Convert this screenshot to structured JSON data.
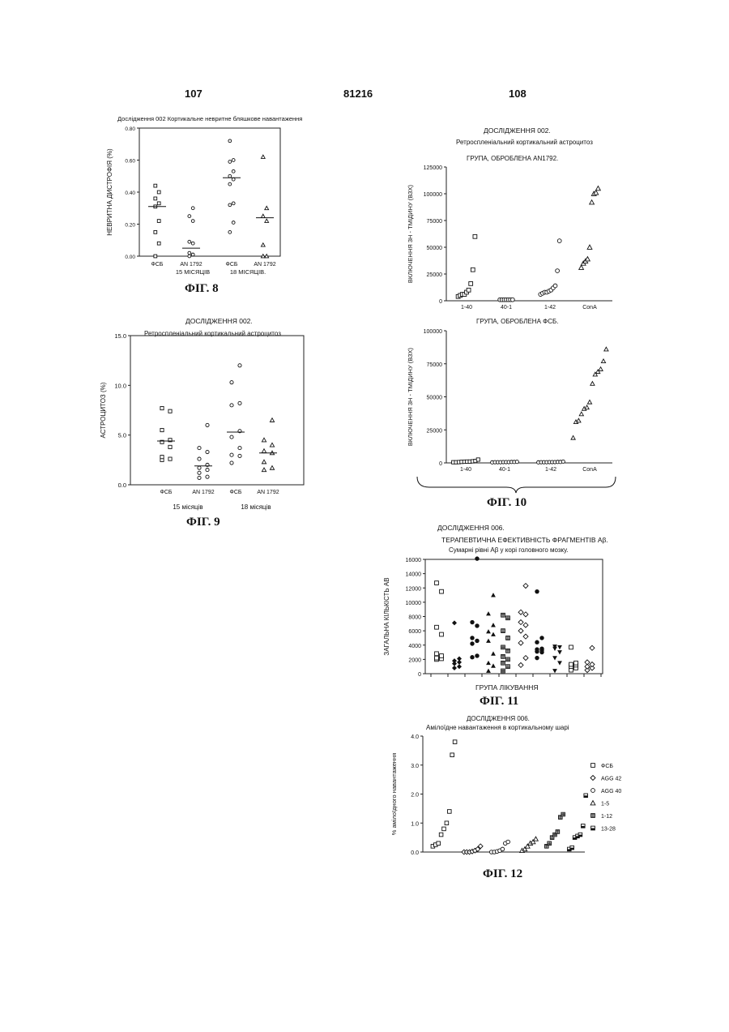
{
  "page": {
    "left_number": "107",
    "center_number": "81216",
    "right_number": "108"
  },
  "captions": {
    "fig8": "ФІГ. 8",
    "fig9": "ФІГ. 9",
    "fig10": "ФІГ. 10",
    "fig11": "ФІГ. 11",
    "fig12": "ФІГ. 12"
  },
  "chart_data": [
    {
      "id": "fig8",
      "type": "scatter",
      "title": "Дослідження 002   Кортикальне невритне бляшкове навантаження",
      "ylabel": "НЕВРИТНА ДИСТРОФІЯ (%)",
      "ylim": [
        0,
        0.8
      ],
      "yticks": [
        "0.00",
        "0.20",
        "0.40",
        "0.60",
        "0.80"
      ],
      "groups": [
        {
          "label": "ФСБ",
          "symbol": "square",
          "mean": 0.31,
          "values": [
            0.0,
            0.08,
            0.15,
            0.22,
            0.31,
            0.33,
            0.36,
            0.4,
            0.44
          ]
        },
        {
          "label": "AN 1792",
          "symbol": "circle",
          "mean": 0.05,
          "values": [
            0.0,
            0.01,
            0.02,
            0.08,
            0.09,
            0.22,
            0.25,
            0.3
          ]
        },
        {
          "label": "ФСБ",
          "symbol": "circle",
          "mean": 0.49,
          "values": [
            0.15,
            0.21,
            0.32,
            0.33,
            0.45,
            0.48,
            0.5,
            0.53,
            0.59,
            0.6,
            0.72
          ]
        },
        {
          "label": "AN 1792",
          "symbol": "triangle",
          "mean": 0.24,
          "values": [
            0.0,
            0.0,
            0.07,
            0.22,
            0.25,
            0.3,
            0.62
          ]
        }
      ],
      "age_labels": [
        "15 МІСЯЦІВ",
        "18 МІСЯЦІВ."
      ]
    },
    {
      "id": "fig9",
      "type": "scatter",
      "title_line1": "ДОСЛІДЖЕННЯ 002.",
      "title_line2": "Ретроспленіальний кортикальний астроцитоз",
      "ylabel": "АСТРОЦИТОЗ (%)",
      "ylim": [
        0,
        15
      ],
      "yticks": [
        "0.0",
        "5.0",
        "10.0",
        "15.0"
      ],
      "groups": [
        {
          "label": "ФСБ",
          "symbol": "square",
          "mean": 4.4,
          "values": [
            2.5,
            2.6,
            2.8,
            3.8,
            4.3,
            4.5,
            5.5,
            7.4,
            7.7
          ]
        },
        {
          "label": "AN 1792",
          "symbol": "circle",
          "mean": 1.9,
          "values": [
            0.7,
            0.8,
            1.2,
            1.5,
            1.7,
            2.0,
            2.6,
            3.3,
            3.7,
            6.0
          ]
        },
        {
          "label": "ФСБ",
          "symbol": "circle",
          "mean": 5.3,
          "values": [
            2.2,
            2.9,
            3.0,
            3.7,
            4.8,
            5.4,
            8.0,
            8.2,
            10.3,
            12.0
          ]
        },
        {
          "label": "AN 1792",
          "symbol": "triangle",
          "mean": 3.2,
          "values": [
            1.5,
            1.7,
            2.3,
            3.2,
            3.4,
            4.0,
            4.5,
            6.5
          ]
        }
      ],
      "age_labels": [
        "15 місяців",
        "18 місяців"
      ]
    },
    {
      "id": "fig10a",
      "type": "scatter",
      "title_line1": "ДОСЛІДЖЕННЯ 002.",
      "title_line2": "Ретроспленіальний кортикальний астроцитоз",
      "subtitle": "ГРУПА, ОБРОБЛЕНА AN1792.",
      "ylabel": "ВКЛЮЧЕННЯ 3Н - ТМІДИНУ (ВЗХ)",
      "ylim": [
        0,
        125000
      ],
      "yticks": [
        "0",
        "25000",
        "50000",
        "75000",
        "100000",
        "125000"
      ],
      "groups": [
        {
          "label": "1-40",
          "symbol": "square",
          "values": [
            4000,
            5000,
            6000,
            6000,
            8000,
            10000,
            16000,
            29000,
            60000
          ]
        },
        {
          "label": "40-1",
          "symbol": "circle",
          "values": [
            1000,
            1000,
            1000,
            1000,
            1000,
            1000,
            1000
          ]
        },
        {
          "label": "1-42",
          "symbol": "circle",
          "values": [
            6000,
            7000,
            8000,
            8000,
            9000,
            10000,
            12000,
            14000,
            28000,
            56000
          ]
        },
        {
          "label": "ConA",
          "symbol": "triangle",
          "values": [
            31000,
            35000,
            37000,
            39000,
            50000,
            92000,
            100000,
            101000,
            105000
          ]
        }
      ]
    },
    {
      "id": "fig10b",
      "type": "scatter",
      "subtitle": "ГРУПА, ОБРОБЛЕНА ФСБ.",
      "ylabel": "ВКЛЮЧЕННЯ 3Н - ТМІДИНУ (ВЗХ)",
      "ylim": [
        0,
        100000
      ],
      "yticks": [
        "0",
        "25000",
        "50000",
        "75000",
        "100000"
      ],
      "groups": [
        {
          "label": "1-40",
          "symbol": "square",
          "values": [
            500,
            500,
            600,
            800,
            900,
            1000,
            1000,
            1200,
            1500,
            2500
          ]
        },
        {
          "label": "40-1",
          "symbol": "circle",
          "values": [
            400,
            500,
            500,
            500,
            600,
            600,
            600,
            700,
            700,
            800
          ]
        },
        {
          "label": "1-42",
          "symbol": "circle",
          "values": [
            400,
            500,
            500,
            500,
            600,
            600,
            600,
            700,
            700,
            1000
          ]
        },
        {
          "label": "ConA",
          "symbol": "triangle",
          "values": [
            19000,
            31000,
            32000,
            37000,
            41000,
            42000,
            46000,
            60000,
            67000,
            69000,
            71000,
            77000,
            86000
          ]
        }
      ]
    },
    {
      "id": "fig11",
      "type": "scatter",
      "title_line1": "ДОСЛІДЖЕННЯ 006.",
      "title_line2": "ТЕРАПЕВТИЧНА ЕФЕКТИВНІСТЬ ФРАГМЕНТІВ Aβ.",
      "title_line3": "Сумарні рівні Aβ у корі головного мозку.",
      "ylabel": "ЗАГАЛЬНА КІЛЬКІСТЬ АВ",
      "xlabel": "ГРУПА ЛІКУВАННЯ",
      "ylim": [
        0,
        16000
      ],
      "yticks": [
        "0",
        "2000",
        "4000",
        "6000",
        "8000",
        "10000",
        "12000",
        "14000",
        "16000"
      ],
      "groups": [
        {
          "symbol": "square",
          "values": [
            2000,
            2100,
            2200,
            2500,
            2800,
            5500,
            6500,
            11500,
            12700
          ]
        },
        {
          "symbol": "diamond-filled",
          "values": [
            800,
            1000,
            1400,
            1600,
            1800,
            2100,
            7100
          ]
        },
        {
          "symbol": "circle-filled",
          "values": [
            2300,
            2500,
            4200,
            4600,
            5000,
            6700,
            7200,
            16100
          ]
        },
        {
          "symbol": "triangle-filled",
          "values": [
            400,
            1100,
            1500,
            2800,
            4600,
            5500,
            5900,
            6800,
            8400,
            11000
          ]
        },
        {
          "symbol": "square-cross",
          "values": [
            400,
            1000,
            1500,
            2000,
            2400,
            3200,
            3700,
            5000,
            6000,
            7800,
            8200
          ]
        },
        {
          "symbol": "diamond",
          "values": [
            1200,
            2200,
            4300,
            5200,
            6000,
            6800,
            7200,
            8300,
            8600,
            12300
          ]
        },
        {
          "symbol": "circle-filled",
          "values": [
            2200,
            3000,
            3100,
            3300,
            3400,
            3500,
            4400,
            5000,
            11500
          ]
        },
        {
          "symbol": "triangle-down-filled",
          "values": [
            400,
            1500,
            2200,
            3000,
            3500,
            3700,
            3800
          ]
        },
        {
          "symbol": "square",
          "values": [
            500,
            800,
            1000,
            1200,
            1300,
            1500,
            3700
          ]
        },
        {
          "symbol": "diamond",
          "values": [
            500,
            800,
            1000,
            1300,
            1600,
            3600
          ]
        }
      ]
    },
    {
      "id": "fig12",
      "type": "scatter",
      "title_line1": "ДОСЛІДЖЕННЯ 006.",
      "title_line2": "Амілоїдне   навантаження   в   кортикальному   шарі",
      "ylabel": "% амілоїдного навантаження",
      "ylim": [
        0,
        4.0
      ],
      "yticks": [
        "0.0",
        "1.0",
        "2.0",
        "3.0",
        "4.0"
      ],
      "legend": [
        {
          "symbol": "square",
          "label": "ФСБ"
        },
        {
          "symbol": "diamond",
          "label": "AGG 42"
        },
        {
          "symbol": "circle",
          "label": "AGG 40"
        },
        {
          "symbol": "triangle",
          "label": "1-5"
        },
        {
          "symbol": "square-cross",
          "label": "1-12"
        },
        {
          "symbol": "square-half",
          "label": "13-28"
        }
      ],
      "groups": [
        {
          "symbol": "square",
          "values": [
            0.2,
            0.25,
            0.3,
            0.6,
            0.8,
            1.0,
            1.4,
            3.35,
            3.8
          ]
        },
        {
          "symbol": "diamond",
          "values": [
            0.0,
            0.0,
            0.0,
            0.02,
            0.05,
            0.1,
            0.2
          ]
        },
        {
          "symbol": "circle",
          "values": [
            0.0,
            0.0,
            0.02,
            0.05,
            0.1,
            0.3,
            0.35
          ]
        },
        {
          "symbol": "triangle",
          "values": [
            0.05,
            0.1,
            0.2,
            0.3,
            0.35,
            0.45
          ]
        },
        {
          "symbol": "square-cross",
          "values": [
            0.2,
            0.3,
            0.5,
            0.6,
            0.7,
            1.2,
            1.3
          ]
        },
        {
          "symbol": "square-half",
          "values": [
            0.1,
            0.15,
            0.5,
            0.55,
            0.6,
            0.9,
            1.95
          ]
        }
      ]
    }
  ]
}
